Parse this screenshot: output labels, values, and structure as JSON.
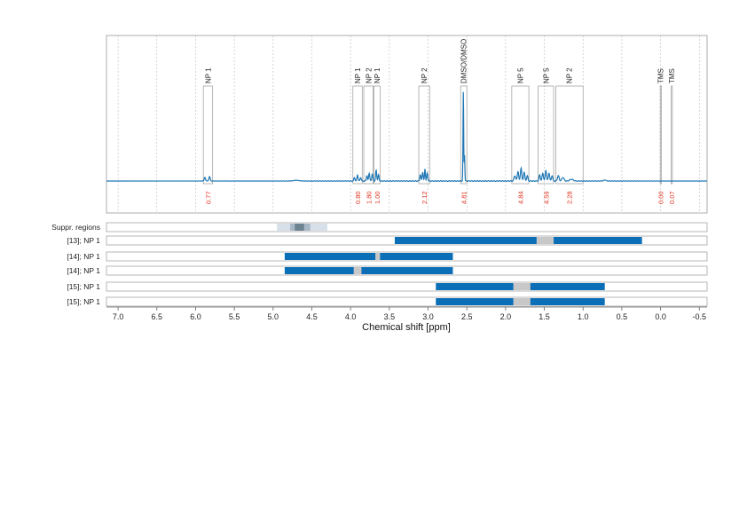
{
  "chart_data": {
    "type": "line",
    "xlabel": "Chemical shift [ppm]",
    "x_reversed": true,
    "xlim": [
      7.15,
      -0.6
    ],
    "xticks": [
      7.0,
      6.5,
      6.0,
      5.5,
      5.0,
      4.5,
      4.0,
      3.5,
      3.0,
      2.5,
      2.0,
      1.5,
      1.0,
      0.5,
      0.0,
      -0.5
    ],
    "xtick_labels": [
      "7.0",
      "6.5",
      "6.0",
      "5.5",
      "5.0",
      "4.5",
      "4.0",
      "3.5",
      "3.0",
      "2.5",
      "2.0",
      "1.5",
      "1.0",
      "0.5",
      "0.0",
      "-0.5"
    ],
    "grid": true,
    "series_color": "#1f77b4",
    "integral_color": "#e0301e",
    "bar_color": "#0b6fb8",
    "overlap_color": "#c8c8c8",
    "peaks": [
      {
        "label": "NP 1",
        "box": [
          5.9,
          5.78
        ],
        "integral": "0.77",
        "x": 5.84
      },
      {
        "label": "NP 1",
        "box": [
          3.97,
          3.85
        ],
        "integral": "0.80",
        "x": 3.91
      },
      {
        "label": "NP 2",
        "box": [
          3.83,
          3.71
        ],
        "integral": "1.80",
        "x": 3.77
      },
      {
        "label": "NP 1",
        "box": [
          3.7,
          3.62
        ],
        "integral": "1.00",
        "x": 3.66
      },
      {
        "label": "NP 2",
        "box": [
          3.12,
          2.98
        ],
        "integral": "2.12",
        "x": 3.05
      },
      {
        "label": "DMSO/DMSO",
        "box": [
          2.58,
          2.5
        ],
        "integral": "4.81",
        "x": 2.54
      },
      {
        "label": "NP 5",
        "box": [
          1.92,
          1.7
        ],
        "integral": "4.84",
        "x": 1.81
      },
      {
        "label": "NP 5",
        "box": [
          1.58,
          1.38
        ],
        "integral": "4.59",
        "x": 1.48
      },
      {
        "label": "NP 2",
        "box": [
          1.35,
          1.0
        ],
        "integral": "2.28",
        "x": 1.18
      },
      {
        "label": "TMS",
        "box": [
          0.005,
          -0.005
        ],
        "integral": "0.00",
        "x": 0.0
      },
      {
        "label": "TMS",
        "box": [
          -0.135,
          -0.145
        ],
        "integral": "0.07",
        "x": -0.14
      }
    ],
    "rows": [
      {
        "label": "Suppr. regions",
        "segments": [
          {
            "from": 4.95,
            "to": 4.3,
            "kind": "suppr"
          }
        ]
      },
      {
        "label": "[13]; NP 1",
        "segments": [
          {
            "from": 3.43,
            "to": 0.24,
            "kind": "bar",
            "gap": [
              1.6,
              1.38
            ]
          }
        ]
      },
      {
        "label": "[14]; NP 1",
        "segments": [
          {
            "from": 4.85,
            "to": 2.68,
            "kind": "bar",
            "gap": [
              3.68,
              3.62
            ]
          }
        ]
      },
      {
        "label": "[14]; NP 1",
        "segments": [
          {
            "from": 4.85,
            "to": 2.68,
            "kind": "bar",
            "gap": [
              3.96,
              3.86
            ]
          }
        ]
      },
      {
        "label": "[15]; NP 1",
        "segments": [
          {
            "from": 2.9,
            "to": 0.72,
            "kind": "bar",
            "gap": [
              1.9,
              1.68
            ]
          }
        ]
      },
      {
        "label": "[15]; NP 1",
        "segments": [
          {
            "from": 2.9,
            "to": 0.72,
            "kind": "bar",
            "gap": [
              1.9,
              1.68
            ]
          }
        ]
      }
    ]
  }
}
